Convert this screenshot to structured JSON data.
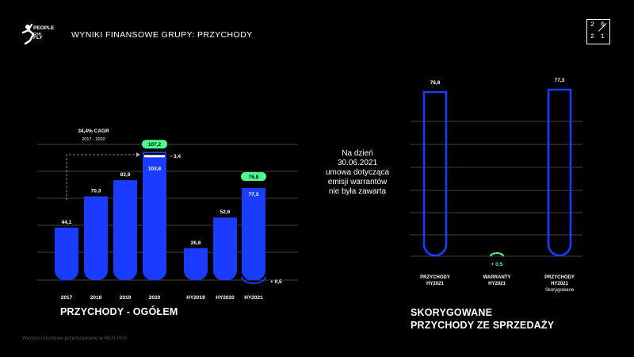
{
  "header": {
    "title": "WYNIKI FINANSOWE GRUPY: PRZYCHODY",
    "logo_text": [
      "PEOPLE",
      "CAN",
      "FLY"
    ],
    "year_badge": [
      "2",
      "0",
      "2",
      "1"
    ]
  },
  "colors": {
    "bar": "#1a3cff",
    "highlight": "#4dff8c",
    "grid": "#5a5a5a"
  },
  "left_chart_title": "PRZYCHODY - OGÓŁEM",
  "right_chart_title_line1": "SKORYGOWANE",
  "right_chart_title_line2": "PRZYCHODY ZE SPRZEDAŻY",
  "middle_note": [
    "Na dzień",
    "30.06.2021",
    "umowa dotycząca",
    "emisji warrantów",
    "nie była zawarta"
  ],
  "footnote": "Wartości liczbowe przedstawione w MLN PLN",
  "chart_data": [
    {
      "type": "bar",
      "categories": [
        "2017",
        "2018",
        "2019",
        "2020",
        "HY2019",
        "HY2020",
        "HY2021"
      ],
      "values": [
        44.1,
        70.3,
        83.9,
        103.8,
        26.8,
        52.6,
        77.3
      ],
      "value_labels": [
        "44,1",
        "70,3",
        "83,9",
        "103,8",
        "26,8",
        "52,6",
        "77,3"
      ],
      "ylim": [
        0,
        120
      ],
      "grid": true,
      "annotations": {
        "cagr_label": "34,4% CAGR",
        "cagr_period": "2017 - 2020",
        "reported_2020": 107.2,
        "reported_2020_label": "107,2",
        "adjustment_2020_label": "- 3,4",
        "reported_hy2021": 76.8,
        "reported_hy2021_label": "76,8",
        "adjustment_hy2021_label": "+ 0,5"
      }
    },
    {
      "type": "bar",
      "categories": [
        "PRZYCHODY HY2021",
        "WARRANTY HY2021",
        "PRZYCHODY HY2021 Skorygowane"
      ],
      "category_lines": [
        [
          "PRZYCHODY",
          "HY2021"
        ],
        [
          "WARRANTY",
          "HY2021"
        ],
        [
          "PRZYCHODY",
          "HY2021",
          "Skorygowane"
        ]
      ],
      "values": [
        76.8,
        0.5,
        77.3
      ],
      "value_labels": [
        "76,8",
        "+ 0,5",
        "77,3"
      ],
      "grid": true
    }
  ]
}
